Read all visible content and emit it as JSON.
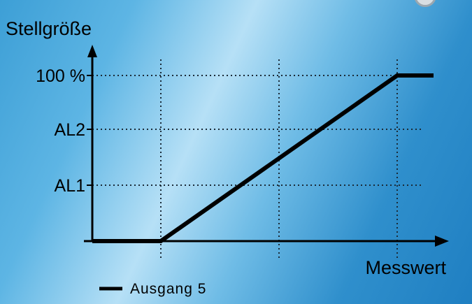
{
  "chart_data": {
    "type": "line",
    "ylabel": "Stellgröße",
    "xlabel": "Messwert",
    "y_ticks": [
      "AL1",
      "AL2",
      "100 %"
    ],
    "series": [
      {
        "name": "Ausgang 5",
        "points": [
          [
            0,
            0
          ],
          [
            1,
            0
          ],
          [
            3,
            100
          ],
          [
            4,
            100
          ]
        ]
      }
    ],
    "legend": "bottom-left",
    "grid": true
  }
}
